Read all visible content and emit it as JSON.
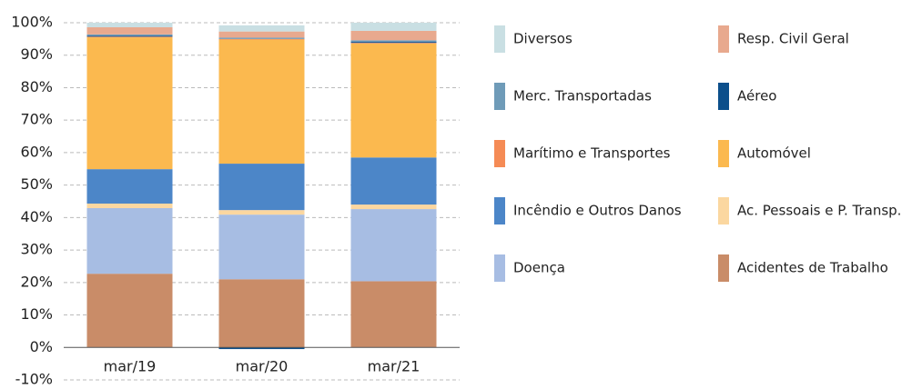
{
  "chart_data": {
    "type": "stacked_bar",
    "categories": [
      "mar/19",
      "mar/20",
      "mar/21"
    ],
    "ylim": [
      -10,
      100
    ],
    "yticks": [
      {
        "value": -10,
        "label": "-10%"
      },
      {
        "value": 0,
        "label": "0%"
      },
      {
        "value": 10,
        "label": "10%"
      },
      {
        "value": 20,
        "label": "20%"
      },
      {
        "value": 30,
        "label": "30%"
      },
      {
        "value": 40,
        "label": "40%"
      },
      {
        "value": 50,
        "label": "50%"
      },
      {
        "value": 60,
        "label": "60%"
      },
      {
        "value": 70,
        "label": "70%"
      },
      {
        "value": 80,
        "label": "80%"
      },
      {
        "value": 90,
        "label": "90%"
      },
      {
        "value": 100,
        "label": "100%"
      }
    ],
    "grid": true,
    "series": [
      {
        "name": "Diversos",
        "color": "#c9dfe3",
        "values": [
          1.4,
          1.9,
          2.5
        ]
      },
      {
        "name": "Resp. Civil Geral",
        "color": "#e8a98e",
        "values": [
          2.2,
          1.9,
          2.9
        ]
      },
      {
        "name": "Merc. Transportadas",
        "color": "#6f9bb8",
        "values": [
          0.4,
          0.4,
          0.5
        ]
      },
      {
        "name": "Aéreo",
        "color": "#0c4f8b",
        "values": [
          0.3,
          -0.5,
          0.3
        ]
      },
      {
        "name": "Marítimo e Transportes",
        "color": "#f58b55",
        "values": [
          0.2,
          0.2,
          0.2
        ]
      },
      {
        "name": "Automóvel",
        "color": "#fbb94f",
        "values": [
          40.6,
          38.2,
          35.1
        ]
      },
      {
        "name": "Incêndio e Outros Danos",
        "color": "#4c86c8",
        "values": [
          10.6,
          14.3,
          14.5
        ]
      },
      {
        "name": "Ac. Pessoais e P. Transp.",
        "color": "#fbd7a0",
        "values": [
          1.4,
          1.4,
          1.4
        ]
      },
      {
        "name": "Doença",
        "color": "#a7bde3",
        "values": [
          20.2,
          19.9,
          22.2
        ]
      },
      {
        "name": "Acidentes de Trabalho",
        "color": "#c98c68",
        "values": [
          22.7,
          21.0,
          20.4
        ]
      }
    ]
  }
}
